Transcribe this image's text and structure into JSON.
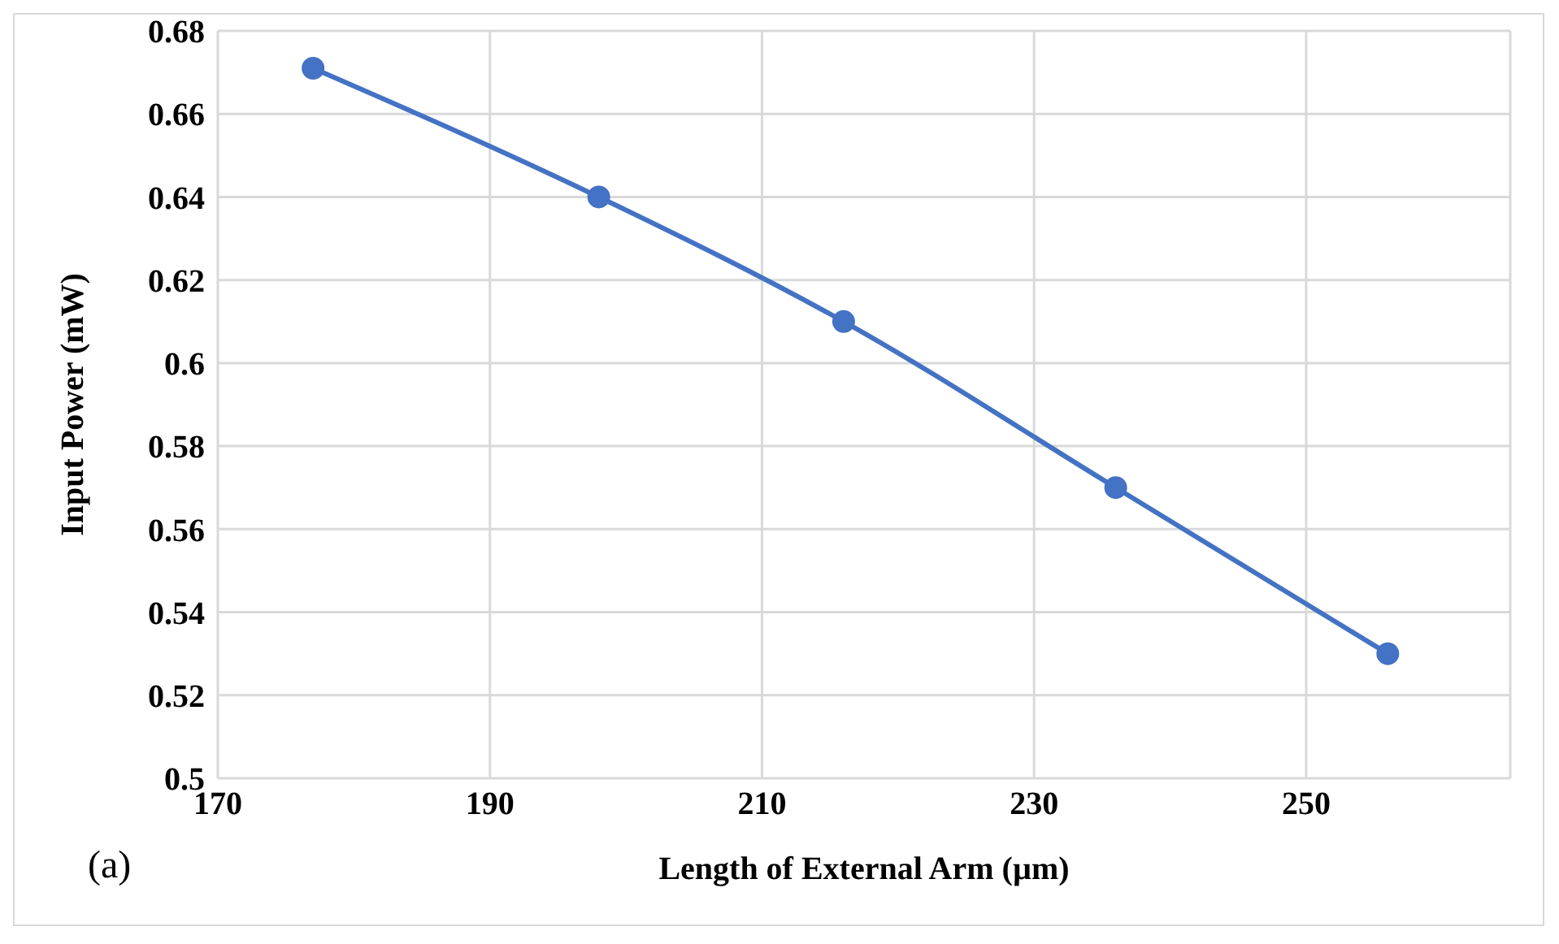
{
  "chart_data": {
    "type": "line",
    "xlabel": "Length of External Arm (µm)",
    "ylabel": "Input  Power (mW)",
    "x": [
      177,
      198,
      216,
      236,
      256
    ],
    "series": [
      {
        "color": "#4472c4",
        "values": [
          0.671,
          0.64,
          0.61,
          0.57,
          0.53
        ]
      }
    ],
    "xlim": [
      170,
      265
    ],
    "xticks": [
      170,
      190,
      210,
      230,
      250
    ],
    "ylim": [
      0.5,
      0.68
    ],
    "yticks": [
      0.5,
      0.52,
      0.54,
      0.56,
      0.58,
      0.6,
      0.62,
      0.64,
      0.66,
      0.68
    ],
    "grid": true,
    "marker": "circle",
    "line_style": "solid",
    "annotations": [
      "(a)"
    ]
  }
}
